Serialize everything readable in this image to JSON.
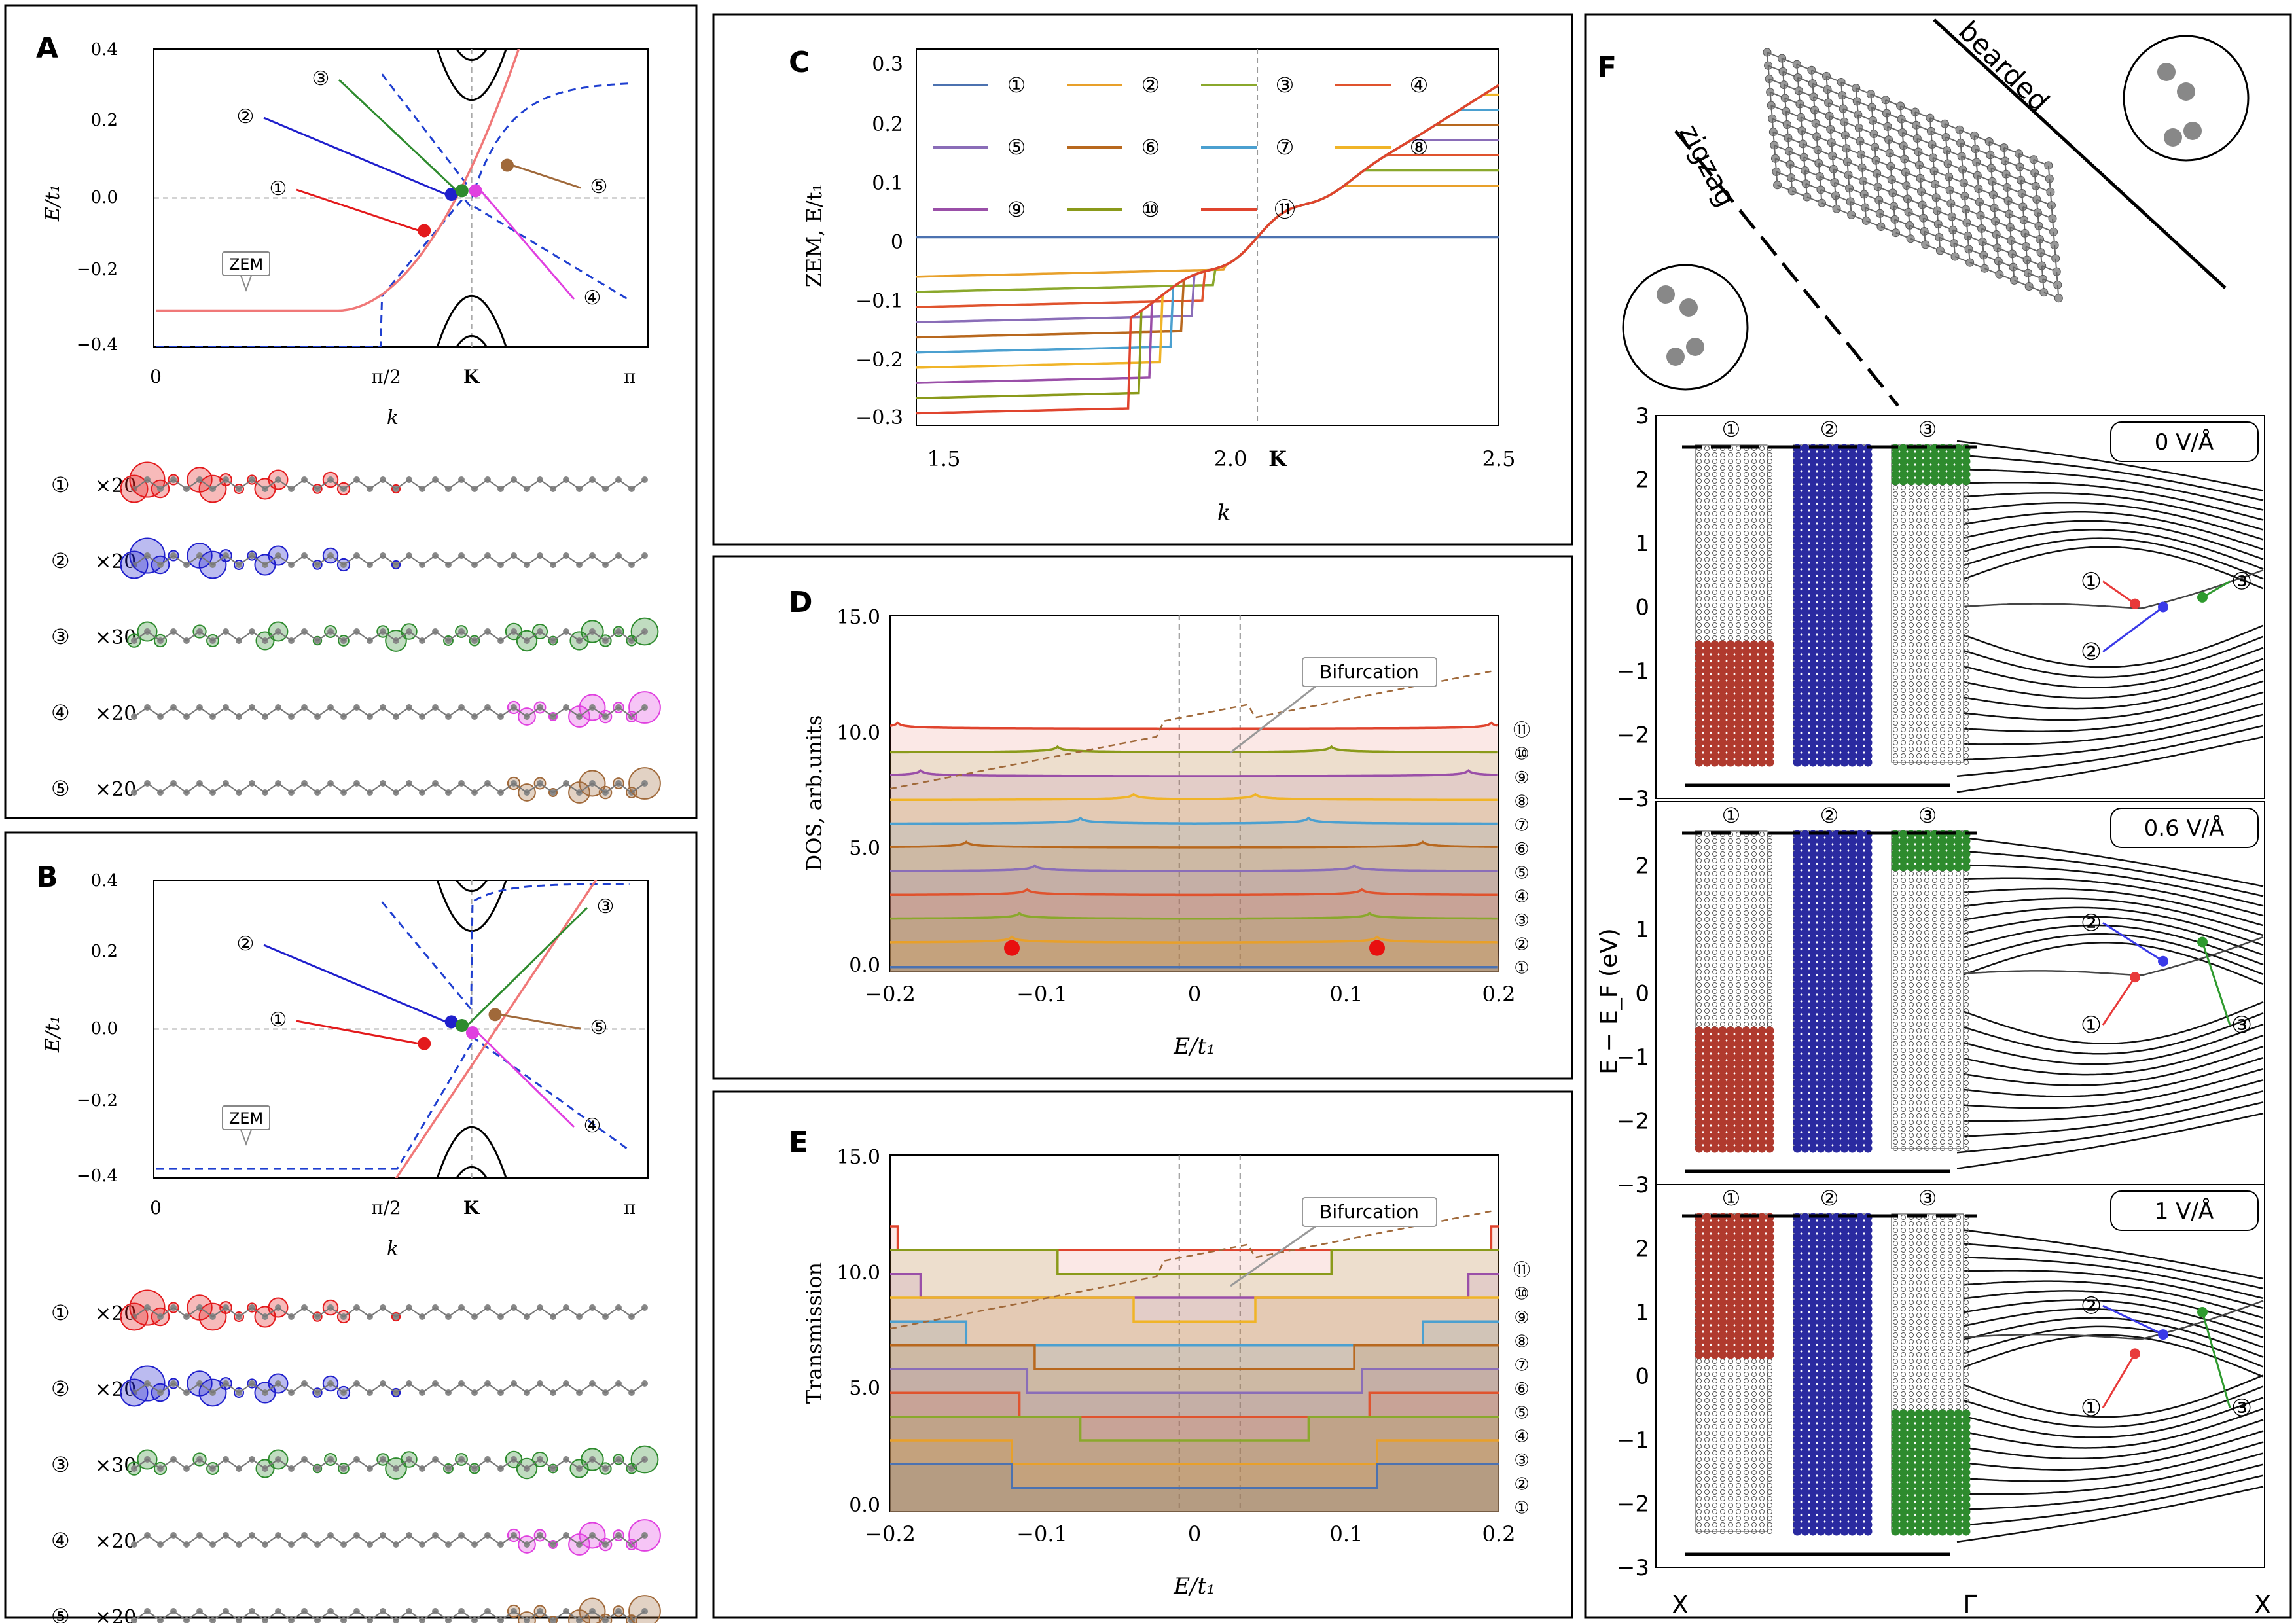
{
  "panels": {
    "A": {
      "letter": "A",
      "ylabel": "E/t₁",
      "xlabel": "k",
      "yticks": [
        "0.4",
        "0.2",
        "0.0",
        "−0.2",
        "−0.4"
      ],
      "xticks": [
        "0",
        "π/2",
        "K",
        "π"
      ],
      "zem": "ZEM",
      "markers": [
        "①",
        "②",
        "③",
        "④",
        "⑤"
      ],
      "rows": [
        {
          "label": "①",
          "mult": "×20",
          "color": "#e31a1c"
        },
        {
          "label": "②",
          "mult": "×20",
          "color": "#1f1fcc"
        },
        {
          "label": "③",
          "mult": "×30",
          "color": "#2e8b2e"
        },
        {
          "label": "④",
          "mult": "×20",
          "color": "#e040e0"
        },
        {
          "label": "⑤",
          "mult": "×20",
          "color": "#a0693a"
        }
      ]
    },
    "B": {
      "letter": "B",
      "ylabel": "E/t₁",
      "xlabel": "k",
      "yticks": [
        "0.4",
        "0.2",
        "0.0",
        "−0.2",
        "−0.4"
      ],
      "xticks": [
        "0",
        "π/2",
        "K",
        "π"
      ],
      "zem": "ZEM",
      "markers": [
        "①",
        "②",
        "③",
        "④",
        "⑤"
      ],
      "rows": [
        {
          "label": "①",
          "mult": "×20",
          "color": "#e31a1c"
        },
        {
          "label": "②",
          "mult": "×20",
          "color": "#1f1fcc"
        },
        {
          "label": "③",
          "mult": "×30",
          "color": "#2e8b2e"
        },
        {
          "label": "④",
          "mult": "×20",
          "color": "#e040e0"
        },
        {
          "label": "⑤",
          "mult": "×20",
          "color": "#a0693a"
        }
      ]
    },
    "C": {
      "letter": "C",
      "ylabel": "ZEM, E/t₁",
      "xlabel": "k",
      "yticks": [
        "0.3",
        "0.2",
        "0.1",
        "0",
        "−0.1",
        "−0.2",
        "−0.3"
      ],
      "xticks": [
        "1.5",
        "2.0",
        "K",
        "2.5"
      ]
    },
    "D": {
      "letter": "D",
      "ylabel": "DOS, arb.units",
      "xlabel": "E/t₁",
      "yticks": [
        "15.0",
        "10.0",
        "5.0",
        "0.0"
      ],
      "xticks": [
        "−0.2",
        "−0.1",
        "0",
        "0.1",
        "0.2"
      ],
      "annotation": "Bifurcation"
    },
    "E": {
      "letter": "E",
      "ylabel": "Transmission",
      "xlabel": "E/t₁",
      "yticks": [
        "15.0",
        "10.0",
        "5.0",
        "0.0"
      ],
      "xticks": [
        "−0.2",
        "−0.1",
        "0",
        "0.1",
        "0.2"
      ],
      "annotation": "Bifurcation"
    },
    "F": {
      "letter": "F",
      "edge_labels": [
        "zigzag",
        "bearded"
      ],
      "ylabel": "E − E_F (eV)",
      "yticks": [
        "3",
        "2",
        "1",
        "0",
        "−1",
        "−2",
        "−3"
      ],
      "xticks": [
        "X",
        "Γ",
        "X"
      ],
      "subpanels": [
        {
          "field": "0 V/Å"
        },
        {
          "field": "0.6 V/Å"
        },
        {
          "field": "1 V/Å"
        }
      ],
      "state_labels": [
        "①",
        "②",
        "③"
      ]
    }
  },
  "series_labels": [
    "①",
    "②",
    "③",
    "④",
    "⑤",
    "⑥",
    "⑦",
    "⑧",
    "⑨",
    "⑩",
    "⑪"
  ],
  "series_colors": [
    "#4c72b0",
    "#e8a02a",
    "#8aa82c",
    "#e0532e",
    "#8a6db8",
    "#b8681e",
    "#4ba0d0",
    "#f0b428",
    "#9a4fa8",
    "#8a9a1a",
    "#e0442e"
  ],
  "chart_data": [
    {
      "panel": "A",
      "type": "line",
      "xlabel": "k",
      "ylabel": "E/t₁",
      "xlim": [
        0,
        3.1416
      ],
      "ylim": [
        -0.41,
        0.41
      ],
      "note_markers": [
        {
          "label": "①",
          "x": 1.78,
          "y": -0.09,
          "color": "#e31a1c"
        },
        {
          "label": "②",
          "x": 1.96,
          "y": 0.01,
          "color": "#1f1fcc"
        },
        {
          "label": "③",
          "x": 2.03,
          "y": 0.02,
          "color": "#2e8b2e"
        },
        {
          "label": "④",
          "x": 2.12,
          "y": 0.02,
          "color": "#e040e0"
        },
        {
          "label": "⑤",
          "x": 2.33,
          "y": 0.09,
          "color": "#a0693a"
        }
      ]
    },
    {
      "panel": "B",
      "type": "line",
      "xlabel": "k",
      "ylabel": "E/t₁",
      "xlim": [
        0,
        3.1416
      ],
      "ylim": [
        -0.41,
        0.41
      ],
      "note_markers": [
        {
          "label": "①",
          "x": 1.78,
          "y": -0.04,
          "color": "#e31a1c"
        },
        {
          "label": "②",
          "x": 1.96,
          "y": 0.02,
          "color": "#1f1fcc"
        },
        {
          "label": "③",
          "x": 2.03,
          "y": 0.01,
          "color": "#2e8b2e"
        },
        {
          "label": "④",
          "x": 2.1,
          "y": -0.01,
          "color": "#e040e0"
        },
        {
          "label": "⑤",
          "x": 2.25,
          "y": 0.04,
          "color": "#a0693a"
        }
      ]
    },
    {
      "panel": "C",
      "type": "line",
      "xlabel": "k",
      "ylabel": "ZEM, E/t₁",
      "xlim": [
        1.45,
        2.55
      ],
      "ylim": [
        -0.31,
        0.31
      ],
      "K": 2.094,
      "series_count": 11
    },
    {
      "panel": "D",
      "type": "line",
      "xlabel": "E/t₁",
      "ylabel": "DOS, arb.units",
      "xlim": [
        -0.2,
        0.2
      ],
      "ylim": [
        0,
        15
      ],
      "offset_step": 1.0,
      "edge_energies": [
        0.0,
        0.12,
        0.115,
        0.11,
        0.105,
        0.15,
        0.075,
        0.04,
        0.18,
        0.09,
        0.195
      ],
      "red_markers": [
        {
          "x": -0.12,
          "y": 1.0
        },
        {
          "x": 0.12,
          "y": 1.0
        }
      ]
    },
    {
      "panel": "E",
      "type": "line",
      "xlabel": "E/t₁",
      "ylabel": "Transmission",
      "xlim": [
        -0.2,
        0.2
      ],
      "ylim": [
        0,
        15
      ],
      "plateaus": [
        {
          "series": "①",
          "steps": [
            [
              -0.2,
              0
            ],
            [
              -0.12,
              1
            ],
            [
              0.12,
              0
            ]
          ]
        },
        {
          "series": "②",
          "steps": [
            [
              -0.2,
              2
            ],
            [
              -0.12,
              1
            ],
            [
              -0.04,
              2
            ],
            [
              0.03,
              1
            ],
            [
              0.12,
              2
            ]
          ]
        },
        {
          "series": "③",
          "steps": [
            [
              -0.2,
              3
            ],
            [
              -0.12,
              2
            ],
            [
              -0.075,
              3
            ],
            [
              0.08,
              2
            ],
            [
              0.12,
              3
            ]
          ]
        }
      ]
    },
    {
      "panel": "F",
      "type": "line",
      "xlabel": "",
      "ylabel": "E − E_F (eV)",
      "ylim": [
        -3,
        3
      ],
      "xticks": [
        "X",
        "Γ",
        "X"
      ]
    }
  ]
}
